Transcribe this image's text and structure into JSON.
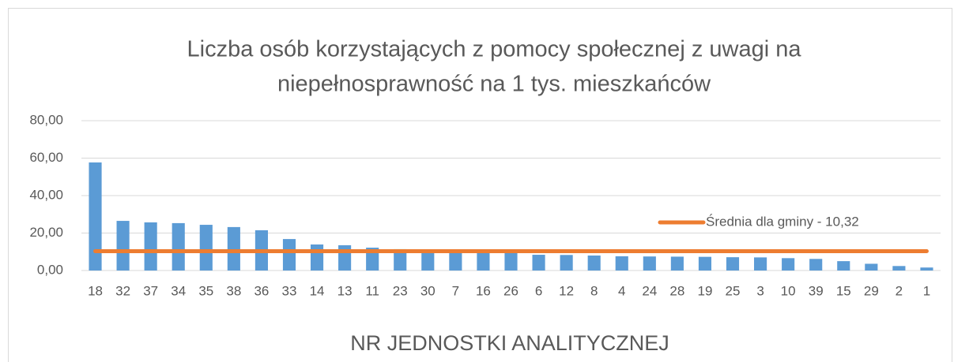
{
  "chart_data": {
    "type": "bar",
    "title": [
      "Liczba osób korzystających z pomocy społecznej z uwagi na",
      "niepełnosprawność na 1 tys. mieszkańców"
    ],
    "x_label": "NR JEDNOSTKI ANALITYCZNEJ",
    "categories": [
      "18",
      "32",
      "37",
      "34",
      "35",
      "38",
      "36",
      "33",
      "14",
      "13",
      "11",
      "23",
      "30",
      "7",
      "16",
      "26",
      "6",
      "12",
      "8",
      "4",
      "24",
      "28",
      "19",
      "25",
      "3",
      "10",
      "39",
      "15",
      "29",
      "2",
      "1"
    ],
    "series": [
      {
        "type": "bar",
        "color": "#5b9bd5",
        "values": [
          57.7,
          26.5,
          25.7,
          25.3,
          24.4,
          23.2,
          21.5,
          16.8,
          13.9,
          13.5,
          12.2,
          11.4,
          10.5,
          10.1,
          9.7,
          9.3,
          8.4,
          8.3,
          8.0,
          7.6,
          7.5,
          7.4,
          7.3,
          7.1,
          7.0,
          6.6,
          6.2,
          5.0,
          3.6,
          2.4,
          1.6
        ]
      },
      {
        "type": "line",
        "name": "Średnia dla gminy - 10,32",
        "color": "#ed7d31",
        "values": [
          10.32,
          10.32,
          10.32,
          10.32,
          10.32,
          10.32,
          10.32,
          10.32,
          10.32,
          10.32,
          10.32,
          10.32,
          10.32,
          10.32,
          10.32,
          10.32,
          10.32,
          10.32,
          10.32,
          10.32,
          10.32,
          10.32,
          10.32,
          10.32,
          10.32,
          10.32,
          10.32,
          10.32,
          10.32,
          10.32,
          10.32
        ]
      }
    ],
    "ylim": [
      0,
      80
    ],
    "yticks": [
      {
        "value": 0,
        "label": "0,00"
      },
      {
        "value": 20,
        "label": "20,00"
      },
      {
        "value": 40,
        "label": "40,00"
      },
      {
        "value": 60,
        "label": "60,00"
      },
      {
        "value": 80,
        "label": "80,00"
      }
    ],
    "grid": true,
    "legend_position": "right"
  }
}
